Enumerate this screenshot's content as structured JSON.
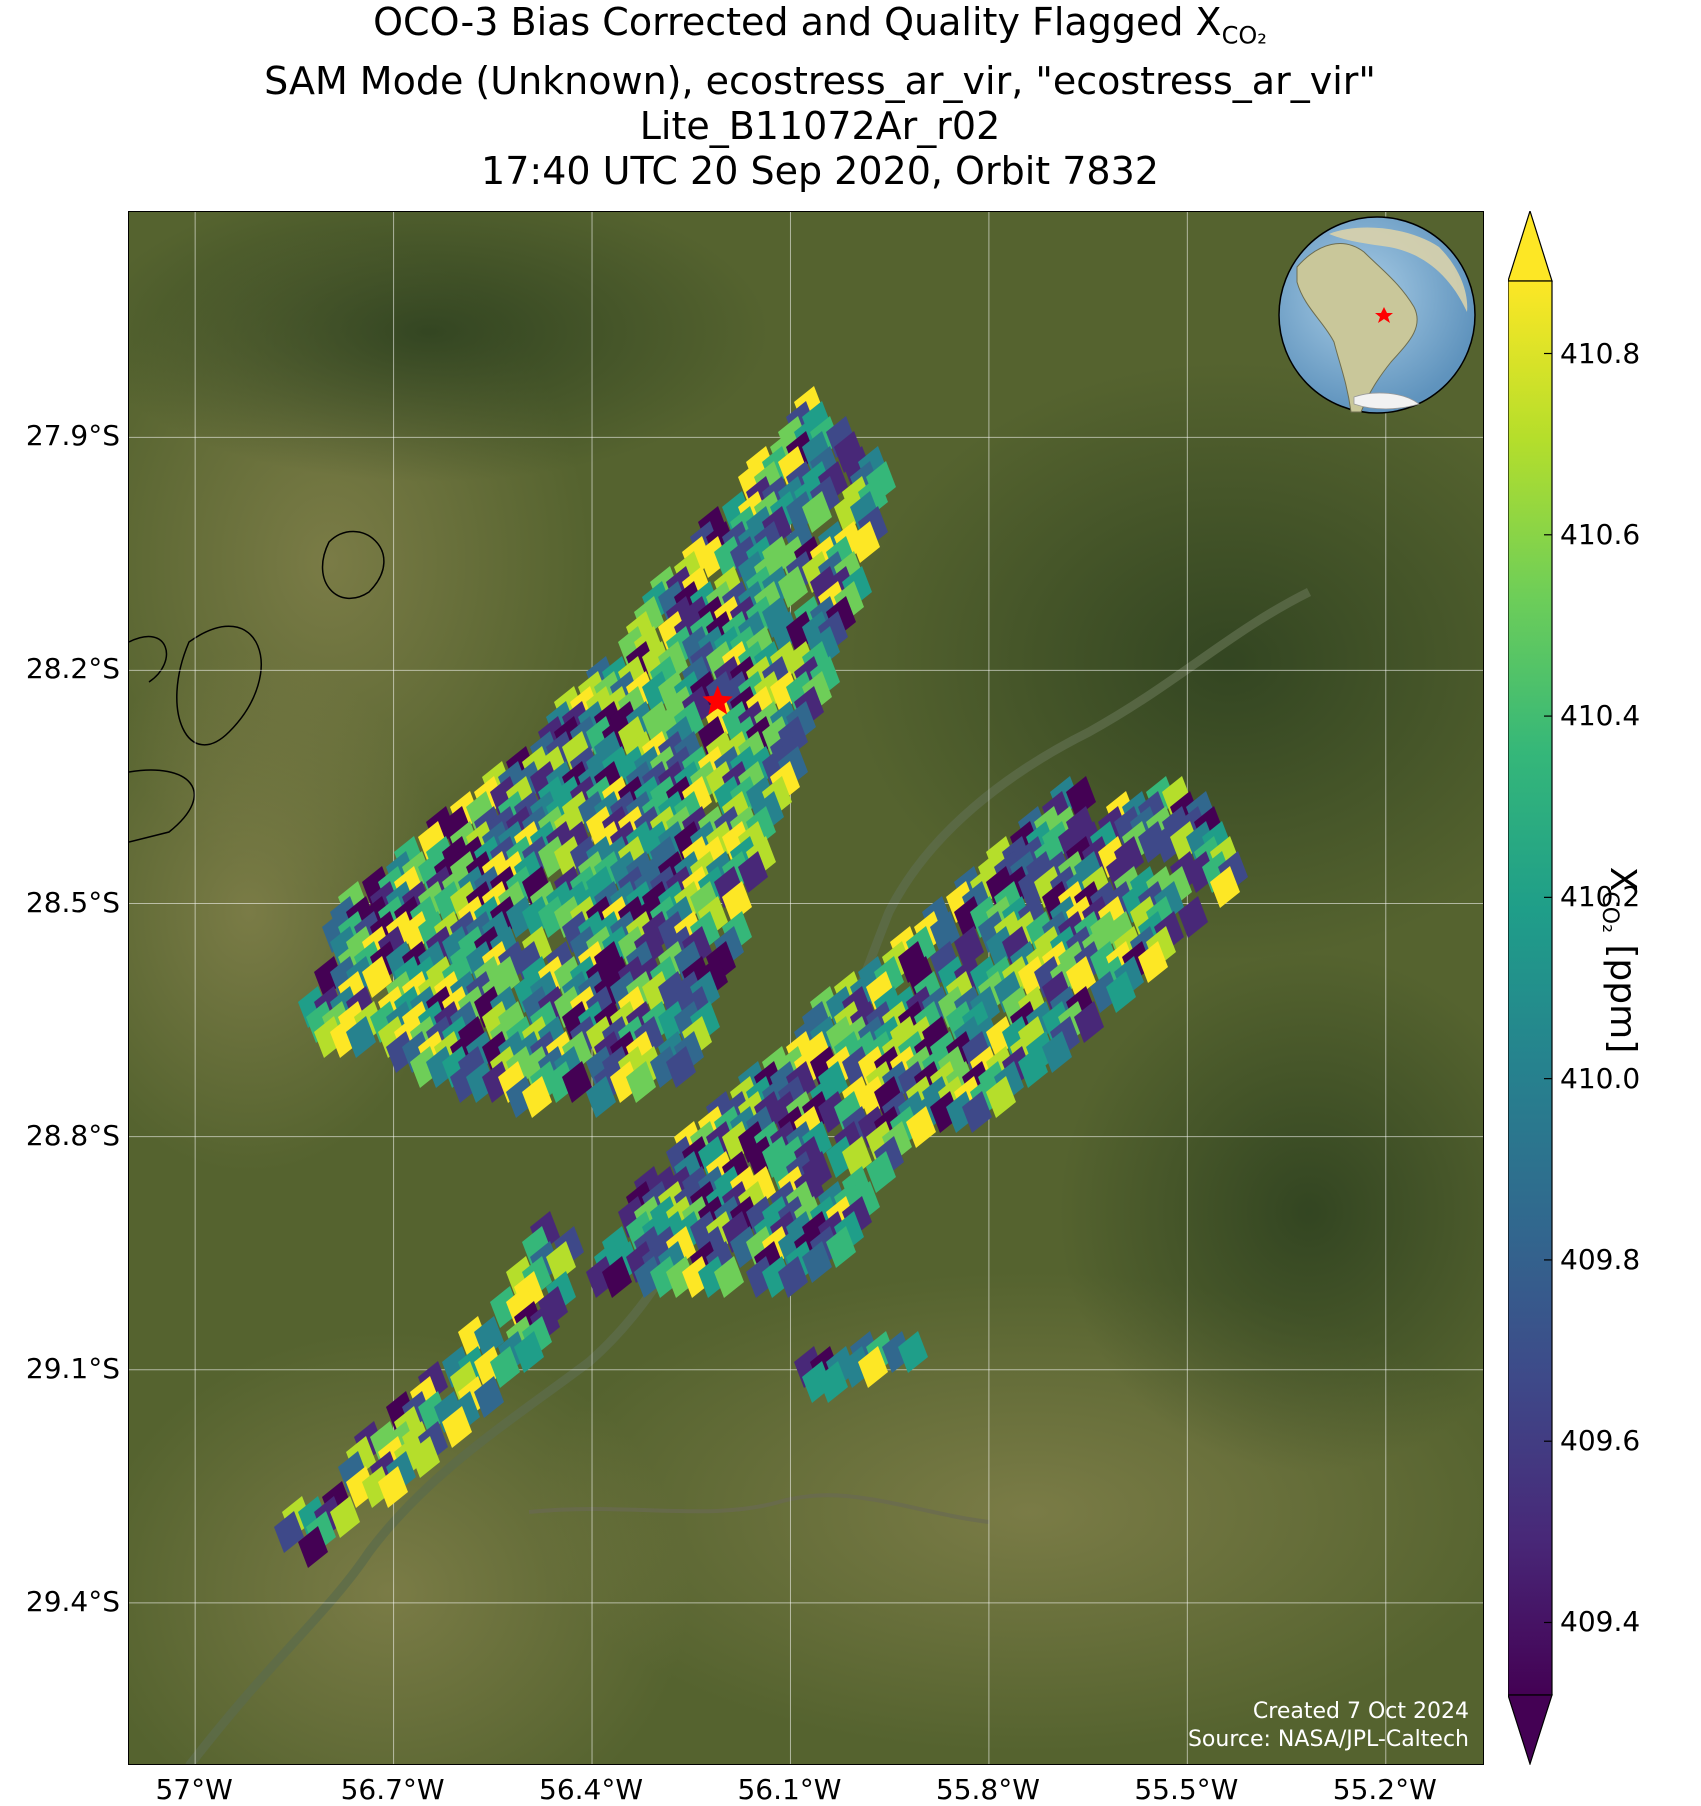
{
  "title": {
    "line1_prefix": "OCO-3 Bias Corrected and Quality Flagged X",
    "line1_sub": "CO₂",
    "line2": "SAM Mode (Unknown), ecostress_ar_vir, \"ecostress_ar_vir\"",
    "line3": "Lite_B11072Ar_r02",
    "line4": "17:40 UTC 20 Sep 2020, Orbit 7832"
  },
  "credit": {
    "created": "Created 7 Oct 2024",
    "source": "Source: NASA/JPL-Caltech"
  },
  "map": {
    "lon_range": [
      -57.1,
      -55.05
    ],
    "lat_range": [
      -29.61,
      -27.61
    ],
    "lon_ticks": [
      {
        "value": -57.0,
        "label": "57°W"
      },
      {
        "value": -56.7,
        "label": "56.7°W"
      },
      {
        "value": -56.4,
        "label": "56.4°W"
      },
      {
        "value": -56.1,
        "label": "56.1°W"
      },
      {
        "value": -55.8,
        "label": "55.8°W"
      },
      {
        "value": -55.5,
        "label": "55.5°W"
      },
      {
        "value": -55.2,
        "label": "55.2°W"
      }
    ],
    "lat_ticks": [
      {
        "value": -27.9,
        "label": "27.9°S"
      },
      {
        "value": -28.2,
        "label": "28.2°S"
      },
      {
        "value": -28.5,
        "label": "28.5°S"
      },
      {
        "value": -28.8,
        "label": "28.8°S"
      },
      {
        "value": -29.1,
        "label": "29.1°S"
      },
      {
        "value": -29.4,
        "label": "29.4°S"
      }
    ],
    "target_marker": {
      "lon": -56.21,
      "lat": -28.24,
      "color": "#ff0000",
      "icon": "star-icon"
    },
    "background": "satellite imagery",
    "gridlines": true,
    "inset": "globe-icon"
  },
  "colorbar": {
    "label_prefix": "X",
    "label_sub": "CO₂",
    "label_suffix": " [ppm]",
    "vmin": 409.32,
    "vmax": 410.88,
    "colormap": "viridis",
    "extend": "both",
    "ticks": [
      {
        "value": 409.4,
        "label": "409.4"
      },
      {
        "value": 409.6,
        "label": "409.6"
      },
      {
        "value": 409.8,
        "label": "409.8"
      },
      {
        "value": 410.0,
        "label": "410.0"
      },
      {
        "value": 410.2,
        "label": "410.2"
      },
      {
        "value": 410.4,
        "label": "410.4"
      },
      {
        "value": 410.6,
        "label": "410.6"
      },
      {
        "value": 410.8,
        "label": "410.8"
      }
    ]
  },
  "colors": {
    "viridis": [
      "#440154",
      "#482878",
      "#3e4989",
      "#31688e",
      "#26828e",
      "#1f9e89",
      "#35b779",
      "#6ece58",
      "#b5de2b",
      "#fde725"
    ]
  }
}
